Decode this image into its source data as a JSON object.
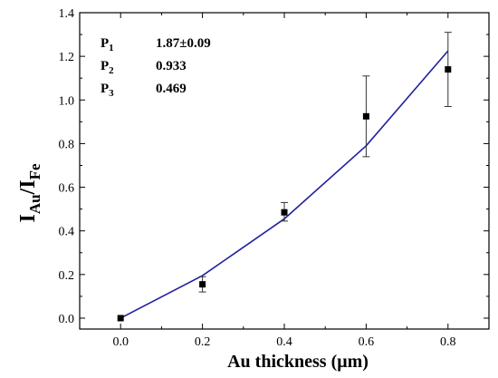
{
  "chart_data": {
    "type": "scatter",
    "title": "",
    "xlabel": "Au thickness (μm)",
    "ylabel": {
      "main": "I",
      "sub1": "Au",
      "slash": "/I",
      "sub2": "Fe"
    },
    "xlim": [
      -0.1,
      0.9
    ],
    "ylim": [
      -0.05,
      1.4
    ],
    "x_ticks": [
      "0.0",
      "0.2",
      "0.4",
      "0.6",
      "0.8"
    ],
    "y_ticks": [
      "0.0",
      "0.2",
      "0.4",
      "0.6",
      "0.8",
      "1.0",
      "1.2",
      "1.4"
    ],
    "grid": false,
    "series": [
      {
        "kind": "points",
        "color": "#000000",
        "x": [
          0.0,
          0.2,
          0.4,
          0.6,
          0.8
        ],
        "y": [
          0.0,
          0.155,
          0.485,
          0.925,
          1.14
        ],
        "err_low": [
          0.0,
          0.035,
          0.04,
          0.185,
          0.17
        ],
        "err_high": [
          0.0,
          0.035,
          0.045,
          0.185,
          0.17
        ]
      },
      {
        "kind": "fit-line",
        "color": "#1f1fa0",
        "x": [
          0.0,
          0.2,
          0.4,
          0.6,
          0.8
        ],
        "y": [
          0.0,
          0.195,
          0.455,
          0.79,
          1.225
        ]
      }
    ],
    "annotations": [
      {
        "label": "P",
        "sub": "1",
        "value": "1.87±0.09"
      },
      {
        "label": "P",
        "sub": "2",
        "value": "0.933"
      },
      {
        "label": "P",
        "sub": "3",
        "value": "0.469"
      }
    ]
  }
}
